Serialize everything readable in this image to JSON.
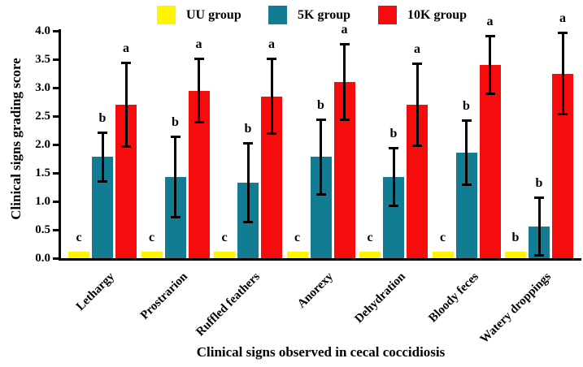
{
  "chart_data": {
    "type": "bar",
    "title": "",
    "xlabel": "Clinical signs observed in cecal coccidiosis",
    "ylabel": "Clinical signs grading score",
    "ylim": [
      0.0,
      4.0
    ],
    "ytick_step": 0.5,
    "grid": false,
    "legend_position": "top",
    "error_bars": "both",
    "categories": [
      "Lethargy",
      "Prostrarion",
      "Ruffled feathers",
      "Anorexy",
      "Dehydration",
      "Bloody feces",
      "Watery droppings"
    ],
    "series": [
      {
        "name": "UU group",
        "color": "#FFF500",
        "values": [
          0.12,
          0.12,
          0.12,
          0.12,
          0.12,
          0.12,
          0.12
        ],
        "errors": [
          0,
          0,
          0,
          0,
          0,
          0,
          0
        ],
        "letters": [
          "c",
          "c",
          "c",
          "c",
          "c",
          "c",
          "b"
        ]
      },
      {
        "name": "5K group",
        "color": "#127C93",
        "values": [
          1.78,
          1.43,
          1.33,
          1.78,
          1.43,
          1.86,
          0.56
        ],
        "errors": [
          0.43,
          0.71,
          0.7,
          0.66,
          0.52,
          0.57,
          0.51
        ],
        "letters": [
          "b",
          "b",
          "b",
          "b",
          "b",
          "b",
          "b"
        ]
      },
      {
        "name": "10K group",
        "color": "#F60C0C",
        "values": [
          2.7,
          2.95,
          2.85,
          3.1,
          2.7,
          3.4,
          3.25
        ],
        "errors": [
          0.74,
          0.57,
          0.67,
          0.67,
          0.73,
          0.52,
          0.72
        ],
        "letters": [
          "a",
          "a",
          "a",
          "a",
          "a",
          "a",
          "a"
        ]
      }
    ]
  }
}
